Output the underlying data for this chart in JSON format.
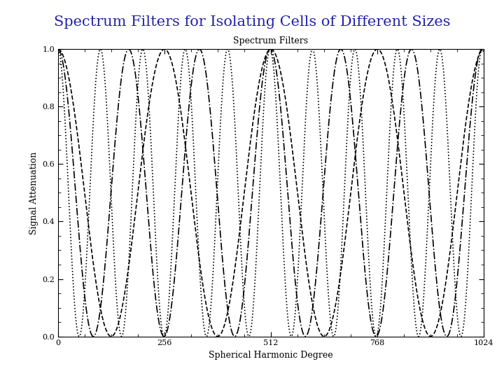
{
  "title": "Spectrum Filters for Isolating Cells of Different Sizes",
  "inner_title": "Spectrum Filters",
  "xlabel": "Spherical Harmonic Degree",
  "ylabel": "Signal Attenuation",
  "xlim": [
    0,
    1024
  ],
  "ylim": [
    0.0,
    1.0
  ],
  "xticks": [
    0,
    256,
    512,
    768,
    1024
  ],
  "yticks": [
    0.0,
    0.2,
    0.4,
    0.6,
    0.8,
    1.0
  ],
  "n_points": 4000,
  "filters": [
    {
      "period": 256,
      "phase": 0,
      "linestyle": "dashed",
      "linewidth": 1.2,
      "color": "#000000"
    },
    {
      "period": 170,
      "phase": 0,
      "linestyle": "dashdot",
      "linewidth": 1.2,
      "color": "#000000"
    },
    {
      "period": 102,
      "phase": 0,
      "linestyle": "dotted",
      "linewidth": 1.2,
      "color": "#000000"
    }
  ],
  "title_color": "#2222aa",
  "title_fontsize": 15,
  "inner_title_fontsize": 9,
  "axis_label_fontsize": 9,
  "tick_fontsize": 8,
  "plot_bg": "#ffffff",
  "fig_bg": "#ffffff"
}
